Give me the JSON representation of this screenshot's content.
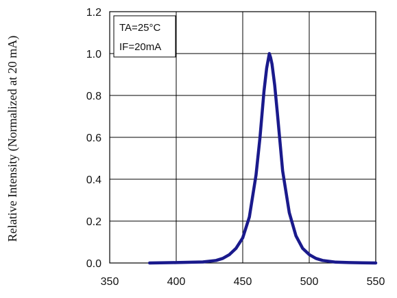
{
  "chart_data": {
    "type": "line",
    "title": "",
    "xlabel": "",
    "ylabel": "Relative Intensity (Normalized at 20 mA)",
    "xlim": [
      350,
      550
    ],
    "ylim": [
      0.0,
      1.2
    ],
    "x_ticks": [
      "350",
      "400",
      "450",
      "500",
      "550"
    ],
    "y_ticks": [
      "0.0",
      "0.2",
      "0.4",
      "0.6",
      "0.8",
      "1.0",
      "1.2"
    ],
    "grid": true,
    "annotation_lines": [
      "TA=25°C",
      "IF=20mA"
    ],
    "series_color": "#1a1a8c",
    "series": [
      {
        "x": [
          380,
          400,
          420,
          430,
          435,
          440,
          445,
          450,
          455,
          460,
          463,
          466,
          468,
          470,
          471,
          472,
          474,
          476,
          478,
          480,
          485,
          490,
          495,
          500,
          505,
          510,
          520,
          530,
          540,
          550
        ],
        "values": [
          0.0,
          0.002,
          0.005,
          0.012,
          0.022,
          0.04,
          0.07,
          0.12,
          0.22,
          0.42,
          0.6,
          0.82,
          0.93,
          1.0,
          0.98,
          0.95,
          0.85,
          0.72,
          0.58,
          0.44,
          0.24,
          0.13,
          0.07,
          0.04,
          0.022,
          0.012,
          0.004,
          0.002,
          0.001,
          0.0
        ]
      }
    ]
  }
}
